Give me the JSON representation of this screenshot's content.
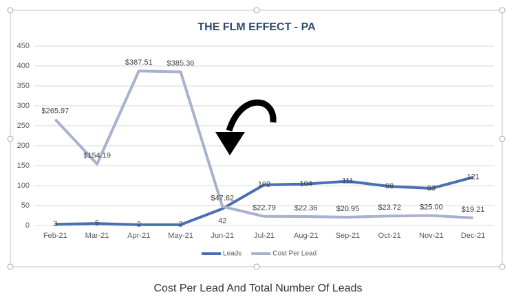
{
  "chart_data": {
    "type": "line",
    "title": "THE FLM EFFECT - PA",
    "categories": [
      "Feb-21",
      "Mar-21",
      "Apr-21",
      "May-21",
      "Jun-21",
      "Jul-21",
      "Aug-21",
      "Sep-21",
      "Oct-21",
      "Nov-21",
      "Dec-21"
    ],
    "series": [
      {
        "name": "Leads",
        "color": "#4a6fb5",
        "values": [
          3,
          5,
          2,
          2,
          42,
          102,
          104,
          111,
          98,
          93,
          121
        ]
      },
      {
        "name": "Cost Per Lead",
        "color": "#aab0cf",
        "values": [
          265.97,
          154.19,
          387.51,
          385.36,
          47.62,
          22.79,
          22.36,
          20.95,
          23.72,
          25.0,
          19.21
        ],
        "value_labels": [
          "$265.97",
          "$154.19",
          "$387.51",
          "$385.36",
          "$47.62",
          "$22.79",
          "$22.36",
          "$20.95",
          "$23.72",
          "$25.00",
          "$19.21"
        ]
      }
    ],
    "ylim": [
      0,
      450
    ],
    "yticks": [
      0,
      50,
      100,
      150,
      200,
      250,
      300,
      350,
      400,
      450
    ],
    "grid": true,
    "legend": "bottom"
  },
  "caption": "Cost Per Lead And Total Number Of Leads"
}
